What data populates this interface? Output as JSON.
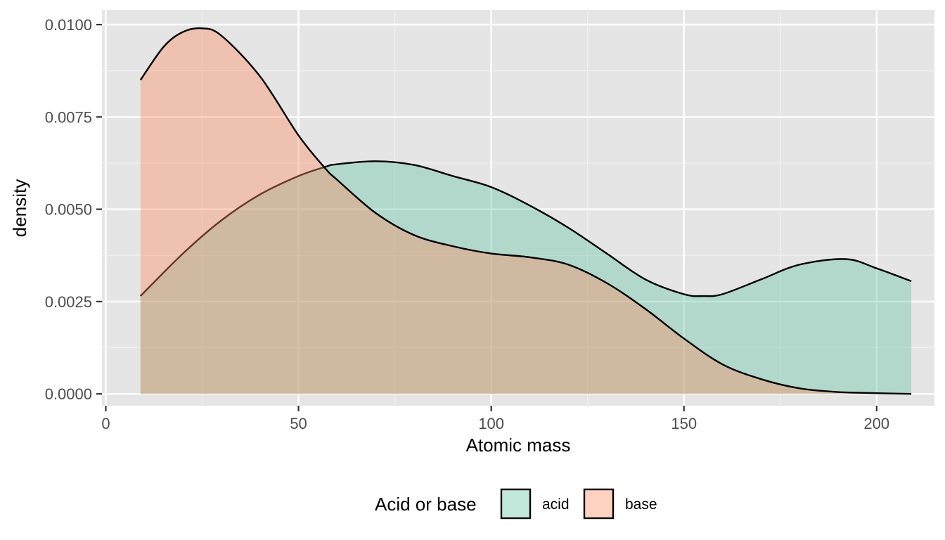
{
  "chart_data": {
    "type": "area",
    "subtype": "density",
    "title": "",
    "xlabel": "Atomic mass",
    "ylabel": "density",
    "xlim": [
      -1,
      215
    ],
    "ylim": [
      -0.00032,
      0.0104
    ],
    "x_ticks": [
      0,
      50,
      100,
      150,
      200
    ],
    "x_tick_labels": [
      "0",
      "50",
      "100",
      "150",
      "200"
    ],
    "y_ticks": [
      0.0,
      0.0025,
      0.005,
      0.0075,
      0.01
    ],
    "y_tick_labels": [
      "0.0000",
      "0.0025",
      "0.0050",
      "0.0075",
      "0.0100"
    ],
    "grid": true,
    "legend": {
      "title": "Acid or base",
      "position": "bottom"
    },
    "series": [
      {
        "name": "acid",
        "color": "#66c2a5",
        "fill_opacity": 0.4,
        "x": [
          9,
          20,
          30,
          40,
          50,
          57,
          60,
          70,
          80,
          90,
          100,
          110,
          120,
          130,
          140,
          150,
          155,
          160,
          170,
          180,
          192,
          200,
          209
        ],
        "y": [
          0.00265,
          0.0038,
          0.0047,
          0.0054,
          0.0059,
          0.00615,
          0.00622,
          0.0063,
          0.0062,
          0.0059,
          0.0056,
          0.0051,
          0.0045,
          0.0038,
          0.0031,
          0.0027,
          0.00265,
          0.0027,
          0.0031,
          0.0035,
          0.00365,
          0.0034,
          0.00305
        ]
      },
      {
        "name": "base",
        "color": "#fc8d62",
        "fill_opacity": 0.4,
        "x": [
          9,
          15,
          20,
          25,
          30,
          40,
          50,
          57,
          60,
          70,
          80,
          90,
          100,
          110,
          120,
          130,
          140,
          150,
          160,
          170,
          180,
          190,
          200,
          209
        ],
        "y": [
          0.0085,
          0.0094,
          0.0098,
          0.0099,
          0.0097,
          0.0086,
          0.007,
          0.0061,
          0.0058,
          0.0049,
          0.0043,
          0.004,
          0.0038,
          0.0037,
          0.0035,
          0.003,
          0.0023,
          0.0015,
          0.0008,
          0.0004,
          0.00015,
          5e-05,
          2e-05,
          0.0
        ]
      }
    ]
  }
}
